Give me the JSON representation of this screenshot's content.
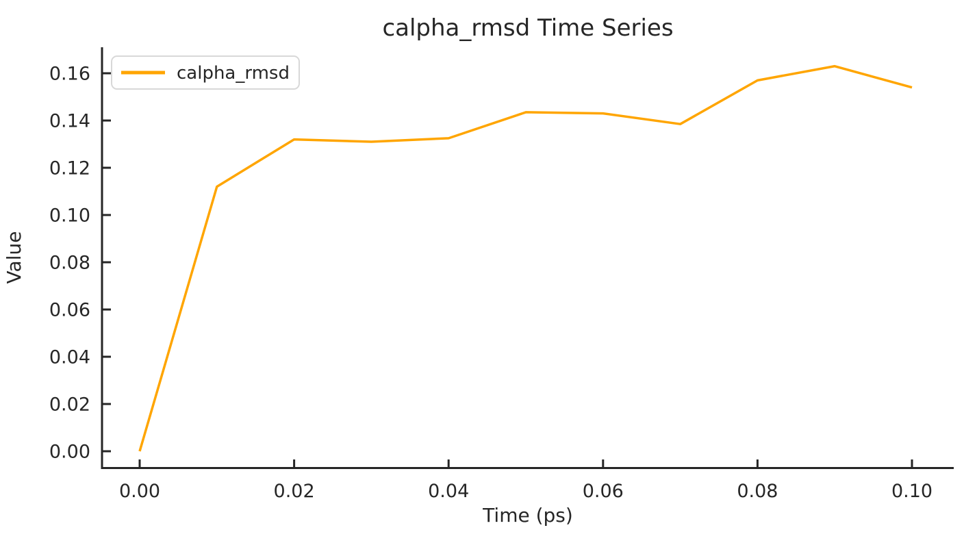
{
  "figure": {
    "title": "calpha_rmsd Time Series",
    "xlabel": "Time (ps)",
    "ylabel": "Value",
    "legend": {
      "position": "upper-left",
      "entries": [
        {
          "label": "calpha_rmsd",
          "color": "#FFA500"
        }
      ]
    }
  },
  "chart_data": {
    "type": "line",
    "title": "calpha_rmsd Time Series",
    "xlabel": "Time (ps)",
    "ylabel": "Value",
    "x": [
      0.0,
      0.01,
      0.02,
      0.03,
      0.04,
      0.05,
      0.06,
      0.07,
      0.08,
      0.09,
      0.1
    ],
    "series": [
      {
        "name": "calpha_rmsd",
        "color": "#FFA500",
        "values": [
          0.0,
          0.112,
          0.132,
          0.131,
          0.1325,
          0.1435,
          0.143,
          0.1385,
          0.157,
          0.163,
          0.154
        ]
      }
    ],
    "xlim": [
      -0.005,
      0.105
    ],
    "ylim": [
      -0.007,
      0.171
    ],
    "xticks": {
      "values": [
        0.0,
        0.02,
        0.04,
        0.06,
        0.08,
        0.1
      ],
      "labels": [
        "0.00",
        "0.02",
        "0.04",
        "0.06",
        "0.08",
        "0.10"
      ]
    },
    "yticks": {
      "values": [
        0.0,
        0.02,
        0.04,
        0.06,
        0.08,
        0.1,
        0.12,
        0.14,
        0.16
      ],
      "labels": [
        "0.00",
        "0.02",
        "0.04",
        "0.06",
        "0.08",
        "0.10",
        "0.12",
        "0.14",
        "0.16"
      ]
    },
    "grid": false,
    "tick_direction": "in",
    "legend_position": "upper-left"
  },
  "style": {
    "line_color": "#FFA500",
    "text_color": "#262626",
    "axis_color": "#262626",
    "legend_border_color": "#D8D8D8",
    "legend_fill": "#FFFFFF",
    "background": "#FFFFFF"
  }
}
